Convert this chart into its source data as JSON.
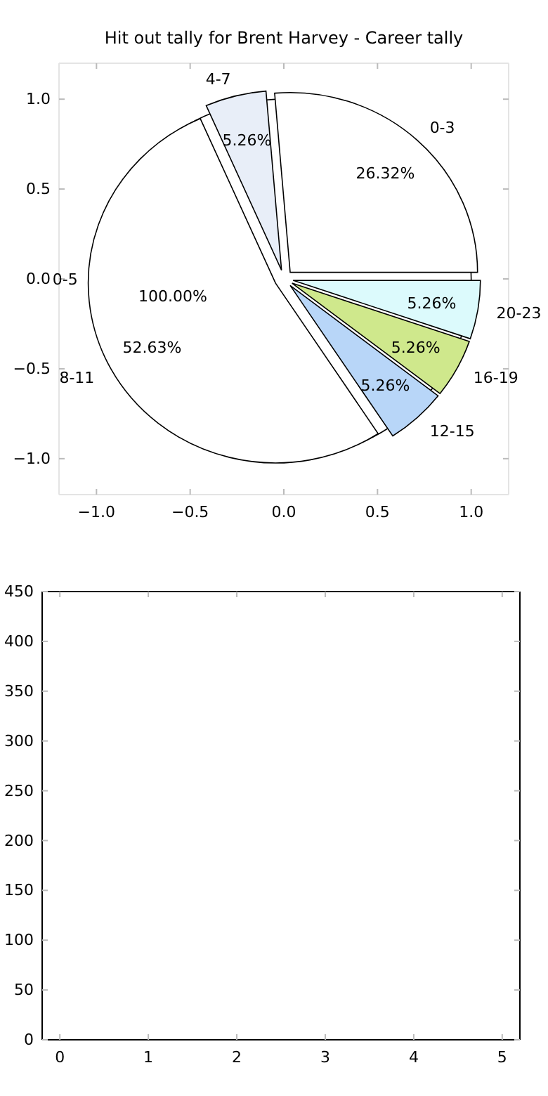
{
  "chart_data": [
    {
      "type": "pie",
      "title": "Hit out tally for Brent Harvey - Career tally",
      "categories": [
        "0-3",
        "4-7",
        "8-11",
        "12-15",
        "16-19",
        "20-23"
      ],
      "values": [
        26.32,
        5.26,
        52.63,
        5.26,
        5.26,
        5.26
      ],
      "colors": [
        "#ffffff",
        "#e8eef8",
        "#ffffff",
        "#b8d6f8",
        "#cfe88c",
        "#dcfafc"
      ],
      "value_labels": [
        "26.32%",
        "5.26%",
        "52.63%",
        "5.26%",
        "5.26%",
        "5.26%"
      ]
    },
    {
      "type": "pie",
      "categories": [
        "0-5"
      ],
      "values": [
        100
      ],
      "colors": [
        "#ffffff"
      ],
      "value_labels": [
        "100.00%"
      ]
    },
    {
      "type": "scatter",
      "xlim": [
        -1.2,
        1.2
      ],
      "xticks": [
        {
          "value": -1,
          "label": "−1.0"
        },
        {
          "value": -0.5,
          "label": "−0.5"
        },
        {
          "value": 0,
          "label": "0.0"
        },
        {
          "value": 0.5,
          "label": "0.5"
        },
        {
          "value": 1,
          "label": "1.0"
        }
      ],
      "ylim": [
        -1.2,
        1.2
      ],
      "yticks": [
        {
          "value": -1,
          "label": "−1.0"
        },
        {
          "value": -0.5,
          "label": "−0.5"
        },
        {
          "value": 0,
          "label": "0.0"
        },
        {
          "value": 0.5,
          "label": "0.5"
        },
        {
          "value": 1,
          "label": "1.0"
        }
      ]
    },
    {
      "type": "scatter",
      "xlim": [
        -0.2,
        5.2
      ],
      "xticks": [
        0,
        1,
        2,
        3,
        4,
        5
      ],
      "ylim": [
        0,
        450
      ],
      "yticks": [
        0,
        50,
        100,
        150,
        200,
        250,
        300,
        350,
        400,
        450
      ]
    }
  ]
}
